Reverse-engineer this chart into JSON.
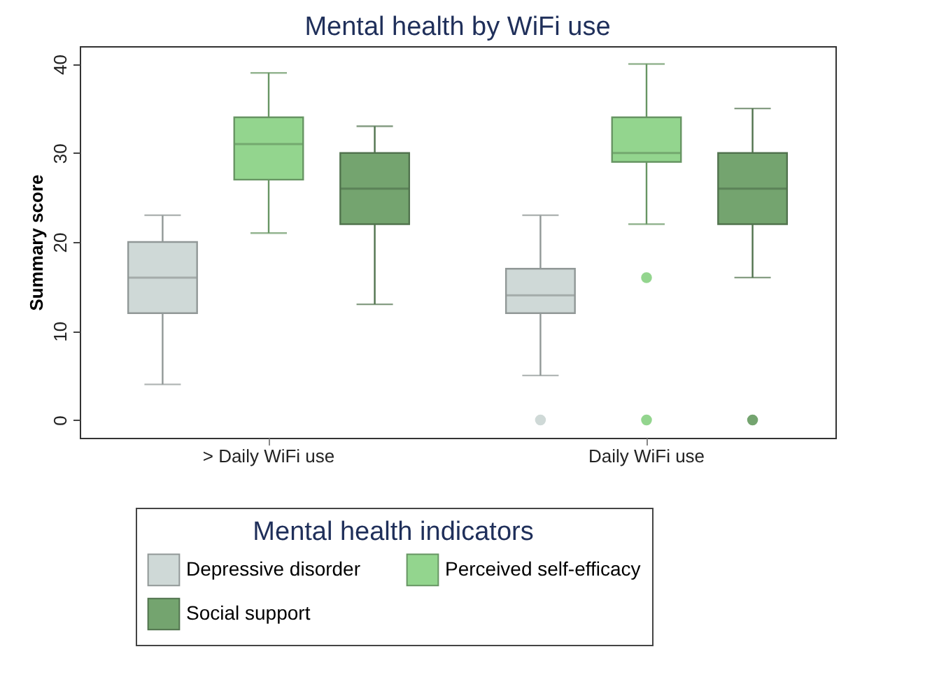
{
  "chart_data": {
    "type": "box",
    "title": "Mental health by WiFi use",
    "ylabel": "Summary score",
    "legend_title": "Mental health indicators",
    "legend": "bottom",
    "categories": [
      "> Daily WiFi use",
      "Daily WiFi use"
    ],
    "ylim": [
      -2,
      42
    ],
    "yticks": [
      0,
      10,
      20,
      30,
      40
    ],
    "series": [
      {
        "name": "Depressive disorder",
        "color": "#cfd9d7",
        "boxes": [
          {
            "low": 4,
            "q1": 12,
            "median": 16,
            "q3": 20,
            "high": 23
          },
          {
            "low": 5,
            "q1": 12,
            "median": 14,
            "q3": 17,
            "high": 23,
            "outliers": [
              0
            ]
          }
        ]
      },
      {
        "name": "Perceived self-efficacy",
        "color": "#93d58e",
        "boxes": [
          {
            "low": 21,
            "q1": 27,
            "median": 31,
            "q3": 34,
            "high": 39
          },
          {
            "low": 22,
            "q1": 29,
            "median": 30,
            "q3": 34,
            "high": 40,
            "outliers": [
              16,
              0
            ]
          }
        ]
      },
      {
        "name": "Social support",
        "color": "#74a46f",
        "boxes": [
          {
            "low": 13,
            "q1": 22,
            "median": 26,
            "q3": 30,
            "high": 33
          },
          {
            "low": 16,
            "q1": 22,
            "median": 26,
            "q3": 30,
            "high": 35,
            "outliers": [
              0
            ]
          }
        ]
      }
    ]
  }
}
